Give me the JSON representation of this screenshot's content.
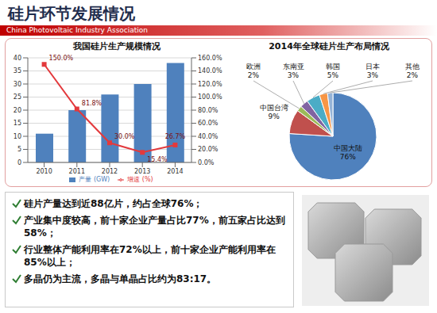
{
  "title": "硅片环节发展情况",
  "subtitle": "China Photovoltaic Industry Association",
  "chart_data": [
    {
      "type": "bar",
      "title": "我国硅片生产规模情况",
      "categories": [
        "2010",
        "2011",
        "2012",
        "2013",
        "2014"
      ],
      "series": [
        {
          "name": "产量 (GW)",
          "type": "bar",
          "color": "#4f81bd",
          "values": [
            11,
            20,
            26,
            30,
            38
          ]
        },
        {
          "name": "增速 (%)",
          "type": "line",
          "color": "#e3393c",
          "marker": "square",
          "axis": "y2",
          "data_labels": true,
          "values": [
            150.0,
            81.8,
            30.0,
            15.4,
            26.7
          ],
          "value_labels": [
            "150.0%",
            "81.8%",
            "30.0%",
            "15.4%",
            "26.7%"
          ]
        }
      ],
      "ylim": [
        0,
        40
      ],
      "yticks": [
        0,
        5,
        10,
        15,
        20,
        25,
        30,
        35,
        40
      ],
      "y2lim": [
        0,
        160
      ],
      "y2ticks": [
        {
          "value": 0,
          "label": "0.0%"
        },
        {
          "value": 20,
          "label": "20.0%"
        },
        {
          "value": 40,
          "label": "40.0%"
        },
        {
          "value": 60,
          "label": "60.0%"
        },
        {
          "value": 80,
          "label": "80.0%"
        },
        {
          "value": 100,
          "label": "100.0%"
        },
        {
          "value": 120,
          "label": "120.0%"
        },
        {
          "value": 140,
          "label": "140.0%"
        },
        {
          "value": 160,
          "label": "160.0%"
        }
      ],
      "grid": true,
      "legend": "bottom"
    },
    {
      "type": "pie",
      "title": "2014年全球硅片生产布局情况",
      "categories": [
        "中国大陆",
        "中国台湾",
        "欧洲",
        "东南亚",
        "韩国",
        "日本",
        "其他"
      ],
      "values": [
        76,
        9,
        2,
        3,
        5,
        3,
        2
      ],
      "value_labels": [
        "76%",
        "9%",
        "2%",
        "3%",
        "5%",
        "3%",
        "2%"
      ],
      "colors": [
        "#4f81bd",
        "#c0504d",
        "#9bbb59",
        "#8064a2",
        "#4bacc6",
        "#f79646",
        "#95b3d7"
      ],
      "data_labels": true
    }
  ],
  "bullets": [
    "硅片产量达到近88亿片，约占全球76%；",
    "产业集中度较高，前十家企业产量占比77%，前五家占比达到58%；",
    "行业整体产能利用率在72%以上，前十家企业产能利用率在85%以上；",
    "多晶仍为主流，多晶与单晶占比约为83:17。"
  ]
}
